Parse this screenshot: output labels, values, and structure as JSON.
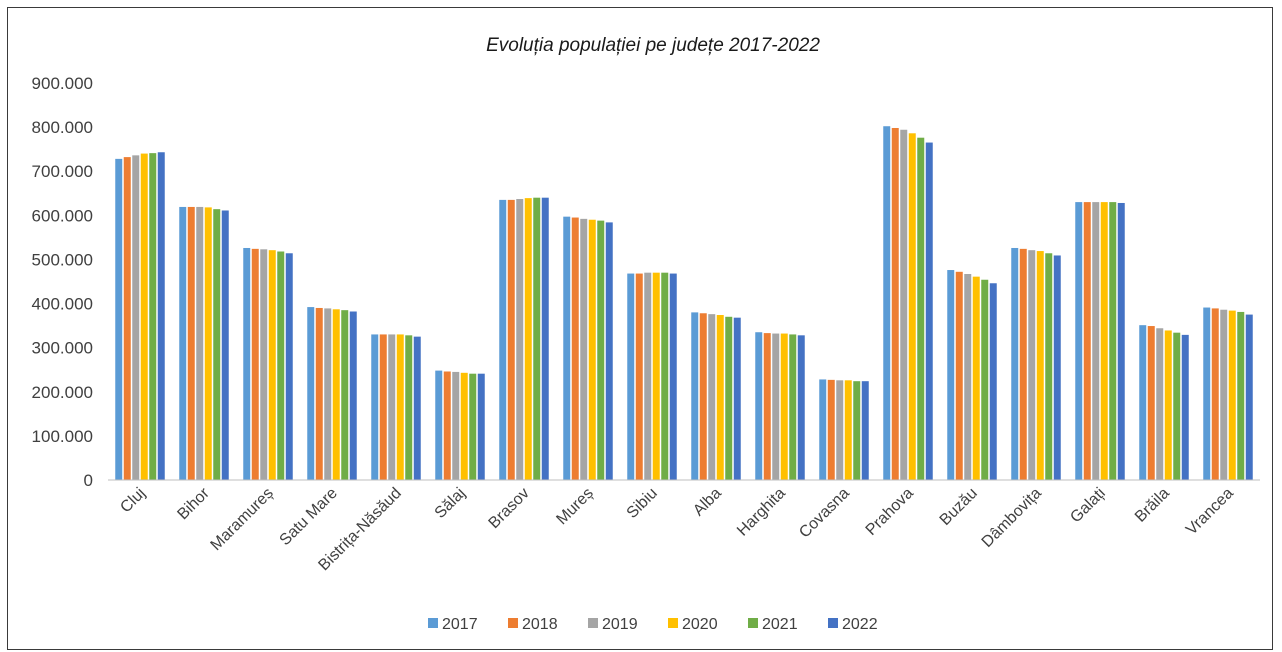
{
  "chart_data": {
    "type": "bar",
    "title": "Evoluția populației pe județe 2017-2022",
    "xlabel": "",
    "ylabel": "",
    "ylim": [
      0,
      900000
    ],
    "yticks": [
      0,
      100000,
      200000,
      300000,
      400000,
      500000,
      600000,
      700000,
      800000,
      900000
    ],
    "ytick_labels": [
      "0",
      "100.000",
      "200.000",
      "300.000",
      "400.000",
      "500.000",
      "600.000",
      "700.000",
      "800.000",
      "900.000"
    ],
    "grid": false,
    "legend_position": "bottom",
    "categories": [
      "Cluj",
      "Bihor",
      "Maramureș",
      "Satu Mare",
      "Bistrița-Năsăud",
      "Sălaj",
      "Brasov",
      "Mureș",
      "Sibiu",
      "Alba",
      "Harghita",
      "Covasna",
      "Prahova",
      "Buzău",
      "Dâmbovița",
      "Galați",
      "Brăila",
      "Vrancea"
    ],
    "series": [
      {
        "name": "2017",
        "color": "#5b9bd5",
        "values": [
          728000,
          619000,
          526000,
          392000,
          330000,
          248000,
          635000,
          597000,
          468000,
          380000,
          335000,
          228000,
          802000,
          476000,
          526000,
          630000,
          351000,
          391000
        ]
      },
      {
        "name": "2018",
        "color": "#ed7d31",
        "values": [
          732000,
          619000,
          524000,
          390000,
          330000,
          246000,
          635000,
          595000,
          468000,
          378000,
          333000,
          227000,
          798000,
          472000,
          524000,
          630000,
          349000,
          389000
        ]
      },
      {
        "name": "2019",
        "color": "#a5a5a5",
        "values": [
          736000,
          619000,
          523000,
          389000,
          330000,
          245000,
          637000,
          592000,
          470000,
          376000,
          332000,
          226000,
          794000,
          467000,
          521000,
          630000,
          344000,
          386000
        ]
      },
      {
        "name": "2020",
        "color": "#ffc000",
        "values": [
          740000,
          618000,
          521000,
          387000,
          330000,
          243000,
          639000,
          590000,
          470000,
          374000,
          332000,
          226000,
          786000,
          461000,
          519000,
          630000,
          339000,
          384000
        ]
      },
      {
        "name": "2021",
        "color": "#70ad47",
        "values": [
          741000,
          614000,
          518000,
          385000,
          328000,
          241000,
          640000,
          588000,
          470000,
          370000,
          330000,
          224000,
          776000,
          454000,
          514000,
          630000,
          334000,
          381000
        ]
      },
      {
        "name": "2022",
        "color": "#4472c4",
        "values": [
          743000,
          611000,
          514000,
          382000,
          325000,
          241000,
          640000,
          584000,
          468000,
          368000,
          328000,
          224000,
          765000,
          446000,
          509000,
          628000,
          329000,
          375000
        ]
      }
    ]
  }
}
